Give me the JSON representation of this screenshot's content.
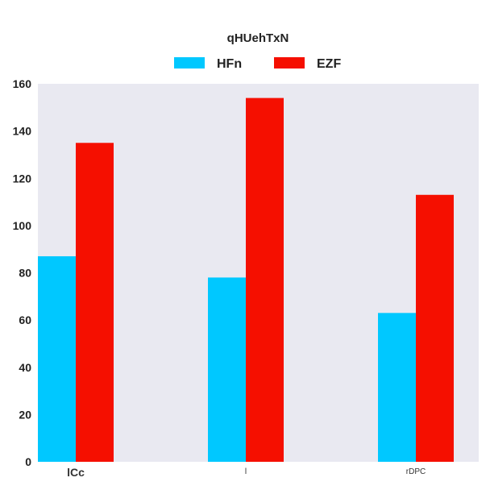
{
  "chart_data": {
    "type": "bar",
    "title": "qHUehTxN",
    "categories": [
      "lCc",
      "l",
      "rDPC"
    ],
    "series": [
      {
        "name": "HFn",
        "values": [
          87,
          78,
          63
        ],
        "color": "#00c8ff"
      },
      {
        "name": "EZF",
        "values": [
          135,
          154,
          113
        ],
        "color": "#f50f00"
      }
    ],
    "xlabel": "",
    "ylabel": "",
    "ylim": [
      0,
      160
    ],
    "yticks": [
      0,
      20,
      40,
      60,
      80,
      100,
      120,
      140,
      160
    ],
    "grid": false,
    "legend_position": "top",
    "plot_background": "#e9e9f1"
  }
}
